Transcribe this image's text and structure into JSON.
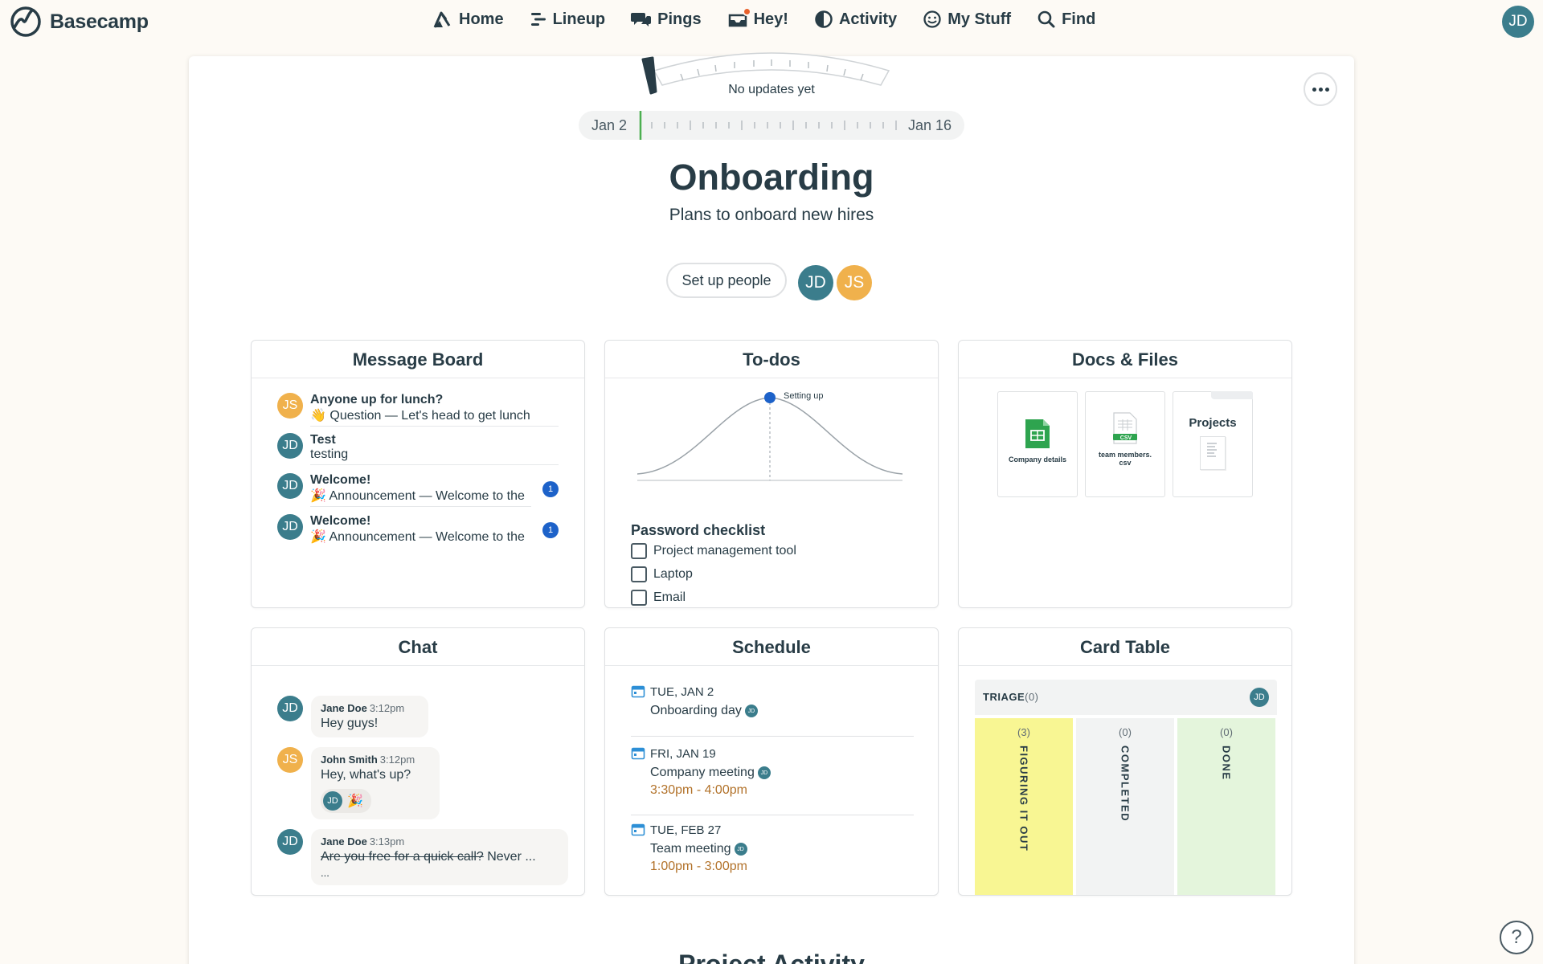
{
  "nav": {
    "brand": "Basecamp",
    "items": [
      {
        "label": "Home",
        "icon": "home-icon"
      },
      {
        "label": "Lineup",
        "icon": "lineup-icon"
      },
      {
        "label": "Pings",
        "icon": "pings-icon"
      },
      {
        "label": "Hey!",
        "icon": "hey-icon"
      },
      {
        "label": "Activity",
        "icon": "activity-icon"
      },
      {
        "label": "My Stuff",
        "icon": "my-stuff-icon"
      },
      {
        "label": "Find",
        "icon": "find-icon"
      }
    ],
    "user_initials": "JD"
  },
  "project": {
    "gauge_text": "No updates yet",
    "timeline_start": "Jan 2",
    "timeline_end": "Jan 16",
    "title": "Onboarding",
    "description": "Plans to onboard new hires",
    "setup_label": "Set up people",
    "people": [
      "JD",
      "JS"
    ]
  },
  "message_board": {
    "title": "Message Board",
    "messages": [
      {
        "avatar": "JS",
        "title": "Anyone up for lunch?",
        "sub": "👋 Question — Let's head to get lunch"
      },
      {
        "avatar": "JD",
        "title": "Test",
        "sub": "testing"
      },
      {
        "avatar": "JD",
        "title": "Welcome!",
        "sub": "🎉 Announcement — Welcome to the",
        "badge": "1"
      },
      {
        "avatar": "JD",
        "title": "Welcome!",
        "sub": "🎉 Announcement — Welcome to the",
        "badge": "1"
      }
    ]
  },
  "todos": {
    "title": "To-dos",
    "hill_label": "Setting up",
    "list_title": "Password checklist",
    "items": [
      "Project management tool",
      "Laptop",
      "Email"
    ]
  },
  "docs": {
    "title": "Docs & Files",
    "files": [
      {
        "label": "Company details"
      },
      {
        "label": "team members.csv",
        "tag": "CSV"
      },
      {
        "label": "Projects"
      }
    ]
  },
  "chat": {
    "title": "Chat",
    "lines": [
      {
        "avatar": "JD",
        "name": "Jane Doe",
        "time": "3:12pm",
        "text": "Hey guys!"
      },
      {
        "avatar": "JS",
        "name": "John Smith",
        "time": "3:12pm",
        "text": "Hey, what's up?",
        "boost": "🎉"
      },
      {
        "avatar": "JD",
        "name": "Jane Doe",
        "time": "3:13pm",
        "struck": "Are you free for a quick call?",
        "text": " Never ...",
        "more": "..."
      }
    ]
  },
  "schedule": {
    "title": "Schedule",
    "events": [
      {
        "date": "TUE, JAN 2",
        "title": "Onboarding day",
        "time": ""
      },
      {
        "date": "FRI, JAN 19",
        "title": "Company meeting",
        "time": "3:30pm - 4:00pm"
      },
      {
        "date": "TUE, FEB 27",
        "title": "Team meeting",
        "time": "1:00pm - 3:00pm"
      }
    ]
  },
  "card_table": {
    "title": "Card Table",
    "triage_label": "TRIAGE",
    "triage_count": "(0)",
    "columns": [
      {
        "label": "FIGURING IT OUT",
        "count": "(3)",
        "color": "#f8f693"
      },
      {
        "label": "COMPLETED",
        "count": "(0)",
        "color": "#f2f3f3"
      },
      {
        "label": "DONE",
        "count": "(0)",
        "color": "#e4f5dc"
      }
    ]
  },
  "footer": {
    "activity_title": "Project Activity",
    "help": "?"
  },
  "colors": {
    "text": "#283c46",
    "avatar_jd": "#3b7d8c",
    "avatar_js": "#f0b14c",
    "badge": "#1d62c9",
    "time": "#b2722a",
    "timeline_marker": "#4caf50"
  }
}
